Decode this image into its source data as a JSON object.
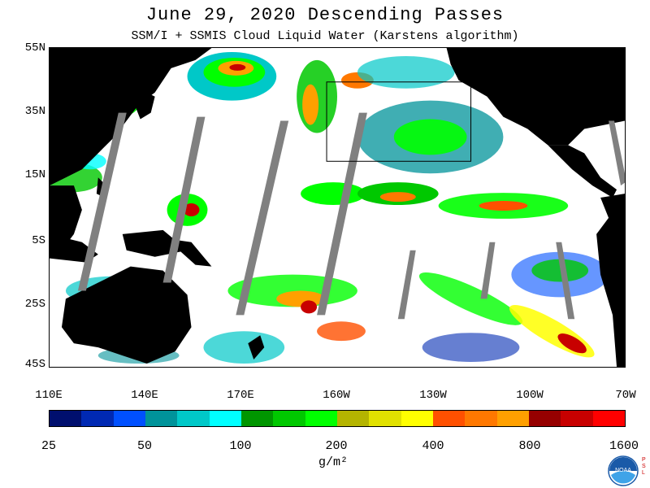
{
  "header": {
    "title": "June 29, 2020  Descending Passes",
    "subtitle": "SSM/I + SSMIS Cloud Liquid Water (Karstens algorithm)"
  },
  "map": {
    "lat_labels": [
      "55N",
      "35N",
      "15N",
      "5S",
      "25S",
      "45S"
    ],
    "lon_labels": [
      "110E",
      "140E",
      "170E",
      "160W",
      "130W",
      "100W",
      "70W"
    ],
    "colors": {
      "ocean_clear": "#ffffff",
      "land": "#000000",
      "no_data_swath": "#808080"
    }
  },
  "colorbar": {
    "colors": [
      "#000f6e",
      "#0029b3",
      "#0050ff",
      "#00939a",
      "#00c8c8",
      "#00ffff",
      "#009600",
      "#00c800",
      "#00ff00",
      "#b4b400",
      "#e1e100",
      "#ffff00",
      "#ff5000",
      "#ff7800",
      "#ffa000",
      "#960000",
      "#c80000",
      "#ff0000"
    ],
    "labels": [
      "25",
      "50",
      "100",
      "200",
      "400",
      "800",
      "1600"
    ],
    "units": "g/m²"
  },
  "logo": {
    "name": "NOAA",
    "side_text": "PSL"
  }
}
